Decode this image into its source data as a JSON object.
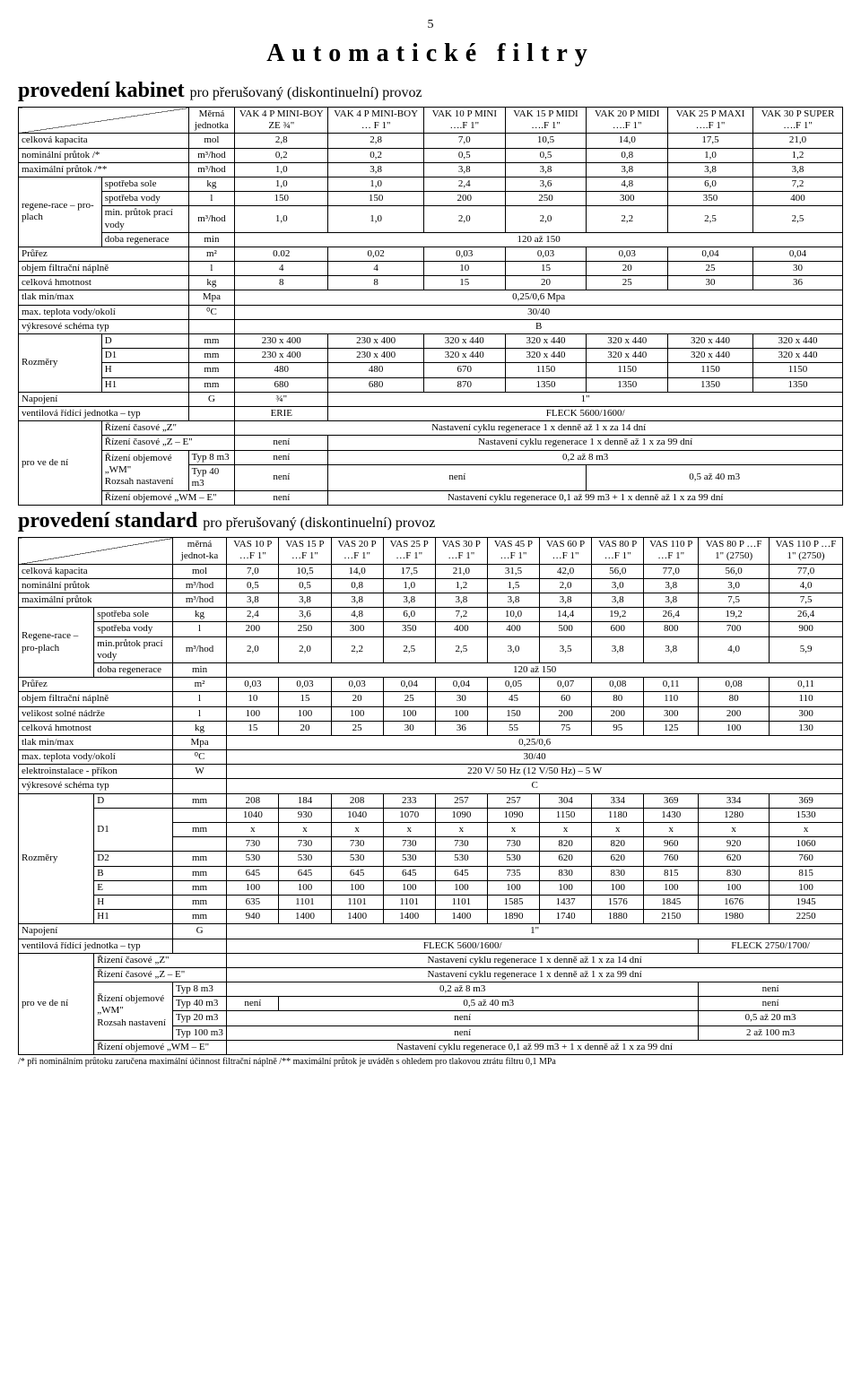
{
  "page_number": "5",
  "main_title": "Automatické filtry",
  "section1": {
    "heading": "provedení kabinet",
    "sub": "pro přerušovaný (diskontinuelní) provoz",
    "unit_hdr1": "Měrná",
    "unit_hdr2": "jednotka",
    "cols": [
      "VAK 4 P MINI-BOY ZE ¾\"",
      "VAK 4 P MINI-BOY … F 1\"",
      "VAK 10 P MINI ….F 1\"",
      "VAK 15 P MIDI ….F 1\"",
      "VAK 20 P MIDI ….F 1\"",
      "VAK 25 P MAXI ….F 1\"",
      "VAK 30 P SUPER ….F 1\""
    ],
    "rows": {
      "r1": {
        "l": "celková kapacita",
        "u": "mol",
        "v": [
          "2,8",
          "2,8",
          "7,0",
          "10,5",
          "14,0",
          "17,5",
          "21,0"
        ]
      },
      "r2": {
        "l": "nominální průtok /*",
        "u": "m³/hod",
        "v": [
          "0,2",
          "0,2",
          "0,5",
          "0,5",
          "0,8",
          "1,0",
          "1,2"
        ]
      },
      "r3": {
        "l": "maximální průtok /**",
        "u": "m³/hod",
        "v": [
          "1,0",
          "3,8",
          "3,8",
          "3,8",
          "3,8",
          "3,8",
          "3,8"
        ]
      },
      "grp": "regene-race – pro-plach",
      "r4": {
        "l": "spotřeba sole",
        "u": "kg",
        "v": [
          "1,0",
          "1,0",
          "2,4",
          "3,6",
          "4,8",
          "6,0",
          "7,2"
        ]
      },
      "r5": {
        "l": "spotřeba vody",
        "u": "l",
        "v": [
          "150",
          "150",
          "200",
          "250",
          "300",
          "350",
          "400"
        ]
      },
      "r6": {
        "l": "min. průtok prací vody",
        "u": "m³/hod",
        "v": [
          "1,0",
          "1,0",
          "2,0",
          "2,0",
          "2,2",
          "2,5",
          "2,5"
        ]
      },
      "r7": {
        "l": "doba regenerace",
        "u": "min",
        "span": "120 až 150"
      },
      "r8": {
        "l": "Průřez",
        "u": "m²",
        "v": [
          "0.02",
          "0,02",
          "0,03",
          "0,03",
          "0,03",
          "0,04",
          "0,04"
        ]
      },
      "r9": {
        "l": "objem filtrační náplně",
        "u": "l",
        "v": [
          "4",
          "4",
          "10",
          "15",
          "20",
          "25",
          "30"
        ]
      },
      "r10": {
        "l": "celková hmotnost",
        "u": "kg",
        "v": [
          "8",
          "8",
          "15",
          "20",
          "25",
          "30",
          "36"
        ]
      },
      "r11": {
        "l": "tlak min/max",
        "u": "Mpa",
        "span": "0,25/0,6 Mpa"
      },
      "r12": {
        "l": "max. teplota vody/okolí",
        "u": "⁰C",
        "span": "30/40"
      },
      "r13": {
        "l": "výkresové schéma typ",
        "u": "",
        "span": "B"
      },
      "dimgrp": "Rozměry",
      "r14": {
        "l": "D",
        "u": "mm",
        "v": [
          "230 x 400",
          "230 x 400",
          "320 x 440",
          "320 x 440",
          "320 x 440",
          "320 x 440",
          "320 x 440"
        ]
      },
      "r15": {
        "l": "D1",
        "u": "mm",
        "v": [
          "230 x 400",
          "230 x 400",
          "320 x 440",
          "320 x 440",
          "320 x 440",
          "320 x 440",
          "320 x 440"
        ]
      },
      "r16": {
        "l": "H",
        "u": "mm",
        "v": [
          "480",
          "480",
          "670",
          "1150",
          "1150",
          "1150",
          "1150"
        ]
      },
      "r17": {
        "l": "H1",
        "u": "mm",
        "v": [
          "680",
          "680",
          "870",
          "1350",
          "1350",
          "1350",
          "1350"
        ]
      },
      "r18": {
        "l": "Napojení",
        "u": "G",
        "c1": "¾\"",
        "rest": "1\""
      },
      "r19": {
        "l": "ventilová řídící jednotka – typ",
        "u": "",
        "c1": "ERIE",
        "rest": "FLECK 5600/1600/"
      },
      "ctrlgrp": "pro ve de ní",
      "r20": {
        "l": "Řízení časové „Z\"",
        "span": "Nastavení cyklu regenerace 1 x denně až 1 x za 14 dní"
      },
      "r21": {
        "l": "Řízení časové „Z – E\"",
        "c1": "není",
        "rest": "Nastavení cyklu regenerace 1 x denně až 1 x za 99 dní"
      },
      "r22a": {
        "l": "Řízení objemové „WM\"",
        "sub": "Rozsah nastavení",
        "t": "Typ 8 m3",
        "c1": "není",
        "rest": "0,2 až 8 m3"
      },
      "r22b": {
        "t": "Typ 40 m3",
        "c1": "není",
        "c2": "není",
        "rest": "0,5 až 40 m3"
      },
      "r23": {
        "l": "Řízení objemové „WM – E\"",
        "c1": "není",
        "rest": "Nastavení cyklu regenerace 0,1 až 99 m3 + 1 x denně až 1 x za 99 dní"
      }
    }
  },
  "section2": {
    "heading": "provedení standard",
    "sub": "pro přerušovaný (diskontinuelní) provoz",
    "unit_hdr": "měrná jednot-ka",
    "cols": [
      "VAS 10 P …F 1\"",
      "VAS 15 P …F 1\"",
      "VAS 20 P …F 1\"",
      "VAS 25 P …F 1\"",
      "VAS 30 P …F 1\"",
      "VAS 45 P …F 1\"",
      "VAS 60 P …F 1\"",
      "VAS 80 P …F 1\"",
      "VAS 110 P …F 1\"",
      "VAS 80 P …F 1\" (2750)",
      "VAS 110 P …F 1\" (2750)"
    ],
    "rows": {
      "r1": {
        "l": "celková kapacita",
        "u": "mol",
        "v": [
          "7,0",
          "10,5",
          "14,0",
          "17,5",
          "21,0",
          "31,5",
          "42,0",
          "56,0",
          "77,0",
          "56,0",
          "77,0"
        ]
      },
      "r2": {
        "l": "nominální průtok",
        "u": "m³/hod",
        "v": [
          "0,5",
          "0,5",
          "0,8",
          "1,0",
          "1,2",
          "1,5",
          "2,0",
          "3,0",
          "3,8",
          "3,0",
          "4,0"
        ]
      },
      "r3": {
        "l": "maximální průtok",
        "u": "m³/hod",
        "v": [
          "3,8",
          "3,8",
          "3,8",
          "3,8",
          "3,8",
          "3,8",
          "3,8",
          "3,8",
          "3,8",
          "7,5",
          "7,5"
        ]
      },
      "grp": "Regene-race – pro-plach",
      "r4": {
        "l": "spotřeba sole",
        "u": "kg",
        "v": [
          "2,4",
          "3,6",
          "4,8",
          "6,0",
          "7,2",
          "10,0",
          "14,4",
          "19,2",
          "26,4",
          "19,2",
          "26,4"
        ]
      },
      "r5": {
        "l": "spotřeba vody",
        "u": "l",
        "v": [
          "200",
          "250",
          "300",
          "350",
          "400",
          "400",
          "500",
          "600",
          "800",
          "700",
          "900"
        ]
      },
      "r6": {
        "l": "min.průtok prací vody",
        "u": "m³/hod",
        "v": [
          "2,0",
          "2,0",
          "2,2",
          "2,5",
          "2,5",
          "3,0",
          "3,5",
          "3,8",
          "3,8",
          "4,0",
          "5,9"
        ]
      },
      "r7": {
        "l": "doba regenerace",
        "u": "min",
        "span": "120 až 150"
      },
      "r8": {
        "l": "Průřez",
        "u": "m²",
        "v": [
          "0,03",
          "0,03",
          "0,03",
          "0,04",
          "0,04",
          "0,05",
          "0,07",
          "0,08",
          "0,11",
          "0,08",
          "0,11"
        ]
      },
      "r9": {
        "l": "objem filtrační náplně",
        "u": "l",
        "v": [
          "10",
          "15",
          "20",
          "25",
          "30",
          "45",
          "60",
          "80",
          "110",
          "80",
          "110"
        ]
      },
      "r10": {
        "l": "velikost solné nádrže",
        "u": "l",
        "v": [
          "100",
          "100",
          "100",
          "100",
          "100",
          "150",
          "200",
          "200",
          "300",
          "200",
          "300"
        ]
      },
      "r11": {
        "l": "celková hmotnost",
        "u": "kg",
        "v": [
          "15",
          "20",
          "25",
          "30",
          "36",
          "55",
          "75",
          "95",
          "125",
          "100",
          "130"
        ]
      },
      "r12": {
        "l": "tlak min/max",
        "u": "Mpa",
        "span": "0,25/0,6"
      },
      "r13": {
        "l": "max. teplota vody/okolí",
        "u": "⁰C",
        "span": "30/40"
      },
      "r14": {
        "l": "elektroinstalace - příkon",
        "u": "W",
        "span": "220 V/ 50 Hz (12 V/50 Hz) – 5 W"
      },
      "r15": {
        "l": "výkresové schéma typ",
        "u": "",
        "span": "C"
      },
      "dimgrp": "Rozměry",
      "r16": {
        "l": "D",
        "u": "mm",
        "v": [
          "208",
          "184",
          "208",
          "233",
          "257",
          "257",
          "304",
          "334",
          "369",
          "334",
          "369"
        ]
      },
      "r17a": {
        "l": "D1",
        "u": "",
        "v": [
          "1040",
          "930",
          "1040",
          "1070",
          "1090",
          "1090",
          "1150",
          "1180",
          "1430",
          "1280",
          "1530"
        ]
      },
      "r17b": {
        "u": "mm",
        "v": [
          "x",
          "x",
          "x",
          "x",
          "x",
          "x",
          "x",
          "x",
          "x",
          "x",
          "x"
        ]
      },
      "r17c": {
        "u": "",
        "v": [
          "730",
          "730",
          "730",
          "730",
          "730",
          "730",
          "820",
          "820",
          "960",
          "920",
          "1060"
        ]
      },
      "r18": {
        "l": "D2",
        "u": "mm",
        "v": [
          "530",
          "530",
          "530",
          "530",
          "530",
          "530",
          "620",
          "620",
          "760",
          "620",
          "760"
        ]
      },
      "r19": {
        "l": "B",
        "u": "mm",
        "v": [
          "645",
          "645",
          "645",
          "645",
          "645",
          "735",
          "830",
          "830",
          "815",
          "830",
          "815"
        ]
      },
      "r20": {
        "l": "E",
        "u": "mm",
        "v": [
          "100",
          "100",
          "100",
          "100",
          "100",
          "100",
          "100",
          "100",
          "100",
          "100",
          "100"
        ]
      },
      "r21": {
        "l": "H",
        "u": "mm",
        "v": [
          "635",
          "1101",
          "1101",
          "1101",
          "1101",
          "1585",
          "1437",
          "1576",
          "1845",
          "1676",
          "1945"
        ]
      },
      "r22": {
        "l": "H1",
        "u": "mm",
        "v": [
          "940",
          "1400",
          "1400",
          "1400",
          "1400",
          "1890",
          "1740",
          "1880",
          "2150",
          "1980",
          "2250"
        ]
      },
      "r23": {
        "l": "Napojení",
        "u": "G",
        "span": "1\""
      },
      "r24": {
        "l": "ventilová řídící jednotka – typ",
        "u": "",
        "a": "FLECK 5600/1600/",
        "b": "FLECK 2750/1700/"
      },
      "ctrlgrp": "pro ve de ní",
      "r25": {
        "l": "Řízení časové „Z\"",
        "span": "Nastavení cyklu regenerace 1 x denně až 1 x za 14 dní"
      },
      "r26": {
        "l": "Řízení časové „Z – E\"",
        "span": "Nastavení cyklu regenerace 1 x denně až 1 x za 99 dní"
      },
      "r27a": {
        "l": "Řízení objemové „WM\"",
        "sub": "Rozsah nastavení",
        "t": "Typ 8 m3",
        "a": "0,2 až 8 m3",
        "b": "není"
      },
      "r27b": {
        "t": "Typ 40 m3",
        "c1": "není",
        "a": "0,5 až 40 m3",
        "b": "není"
      },
      "r27c": {
        "t": "Typ 20 m3",
        "a": "není",
        "b": "0,5 až 20 m3"
      },
      "r27d": {
        "t": "Typ 100 m3",
        "a": "není",
        "b": "2 až 100 m3"
      },
      "r28": {
        "l": "Řízení objemové „WM – E\"",
        "span": "Nastavení cyklu regenerace 0,1 až 99 m3 + 1 x denně až 1 x za 99 dní"
      }
    }
  },
  "footnote": "/* při nominálním průtoku zaručena maximální účinnost filtrační náplně /** maximální průtok je uváděn s ohledem pro tlakovou ztrátu filtru 0,1 MPa"
}
